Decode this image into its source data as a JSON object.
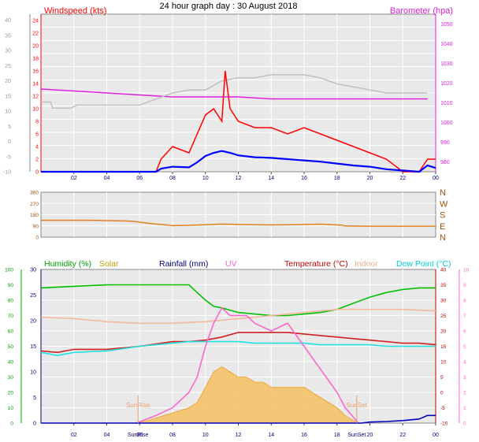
{
  "title": "24 hour graph day : 30 August 2018",
  "chart_data": [
    {
      "type": "line",
      "panel": "wind-barometer",
      "legend": {
        "left": "Windspeed (kts)",
        "right": "Barometer (hpa)"
      },
      "x_ticks": [
        "02",
        "04",
        "06",
        "08",
        "10",
        "12",
        "14",
        "16",
        "18",
        "20",
        "22",
        "00"
      ],
      "xlim": [
        0,
        24
      ],
      "left_axis": {
        "ticks": [
          0,
          2,
          4,
          6,
          8,
          10,
          12,
          14,
          16,
          18,
          20,
          22,
          24
        ],
        "ylim": [
          0,
          25
        ]
      },
      "outer_left_axis": {
        "ticks": [
          -10,
          -5,
          0,
          5,
          10,
          15,
          20,
          25,
          30,
          35,
          40
        ],
        "ylim": [
          -10,
          42
        ]
      },
      "right_axis": {
        "ticks": [
          980,
          990,
          1000,
          1010,
          1020,
          1030,
          1040,
          1050
        ],
        "ylim": [
          975,
          1055
        ]
      },
      "series": [
        {
          "name": "Barometer (hpa)",
          "axis": "right",
          "color": "#e020e0",
          "x": [
            0,
            2,
            4,
            6,
            8,
            10,
            12,
            14,
            16,
            18,
            20,
            22,
            23.5
          ],
          "y": [
            1017,
            1016,
            1015,
            1014,
            1013,
            1013,
            1013,
            1012,
            1012,
            1012,
            1012,
            1012,
            1012
          ]
        },
        {
          "color": "#c0c0c0",
          "axis": "outer_left",
          "x": [
            0,
            0.6,
            0.7,
            1.8,
            2.2,
            4,
            6,
            7,
            8,
            9,
            10,
            11,
            12,
            13,
            14,
            15,
            16,
            17,
            18,
            19,
            20,
            21,
            22,
            23.5
          ],
          "y": [
            13,
            13,
            11,
            11,
            12,
            12,
            12,
            14,
            16,
            17,
            17,
            20,
            21,
            21,
            22,
            22,
            22,
            21,
            19,
            18,
            17,
            16,
            16,
            16
          ]
        },
        {
          "name": "Windspeed (kts)",
          "axis": "left",
          "color": "#ff0000",
          "x": [
            0,
            7,
            7.3,
            8,
            9,
            9.5,
            10,
            10.5,
            11,
            11.2,
            11.5,
            12,
            13,
            14,
            15,
            16,
            17,
            18,
            19,
            20,
            21,
            22,
            23,
            23.5,
            24
          ],
          "y": [
            0,
            0,
            2,
            4,
            3,
            6,
            9,
            10,
            8,
            16,
            10,
            8,
            7,
            7,
            6,
            7,
            6,
            5,
            4,
            3,
            2,
            0,
            0,
            2,
            2
          ]
        },
        {
          "axis": "left",
          "color": "#0000ff",
          "x": [
            0,
            7,
            7.3,
            8,
            9,
            9.5,
            10,
            10.5,
            11,
            11.5,
            12,
            13,
            14,
            15,
            16,
            17,
            18,
            19,
            20,
            21,
            22,
            23,
            23.5,
            24
          ],
          "y": [
            0,
            0,
            0.5,
            0.8,
            0.7,
            1.5,
            2.5,
            3,
            3.3,
            3,
            2.6,
            2.3,
            2.2,
            2,
            1.8,
            1.6,
            1.3,
            1,
            0.8,
            0.4,
            0.2,
            0,
            1,
            0.6
          ]
        }
      ]
    },
    {
      "type": "line",
      "panel": "wind-direction",
      "left_axis": {
        "ticks": [
          0,
          90,
          180,
          270,
          360
        ],
        "ylim": [
          0,
          360
        ]
      },
      "right_labels": [
        "N",
        "W",
        "S",
        "E",
        "N"
      ],
      "xlim": [
        0,
        24
      ],
      "series": [
        {
          "color": "#e08020",
          "x": [
            0,
            3,
            5,
            5.5,
            6,
            6.5,
            7,
            7.5,
            8,
            9,
            10,
            11,
            12,
            13,
            14,
            15,
            16,
            17,
            18,
            18.3,
            18.5,
            20,
            22,
            24
          ],
          "y": [
            135,
            135,
            130,
            128,
            120,
            112,
            105,
            100,
            92,
            95,
            100,
            105,
            102,
            100,
            98,
            100,
            102,
            104,
            98,
            96,
            90,
            88,
            88,
            88
          ]
        }
      ]
    },
    {
      "type": "line",
      "panel": "temperature-humidity",
      "legend": [
        {
          "label": "Humidity (%)",
          "color": "#00a000"
        },
        {
          "label": "Solar",
          "color": "#c0a000"
        },
        {
          "label": "Rainfall (mm)",
          "color": "#000080"
        },
        {
          "label": "UV",
          "color": "#ff66cc"
        },
        {
          "label": "Temperature (°C)",
          "color": "#c00000"
        },
        {
          "label": "Indoor",
          "color": "#f0b090"
        },
        {
          "label": "Dew Point (°C)",
          "color": "#00d0d0"
        }
      ],
      "x_ticks": [
        "02",
        "04",
        "06",
        "08",
        "10",
        "12",
        "14",
        "16",
        "18",
        "20",
        "22",
        "00"
      ],
      "markers": [
        "SunRise",
        "SunSet"
      ],
      "xlim": [
        0,
        24
      ],
      "humidity_axis": {
        "ticks": [
          0,
          10,
          20,
          30,
          40,
          50,
          60,
          70,
          80,
          90,
          100
        ],
        "ylim": [
          0,
          100
        ]
      },
      "rain_axis": {
        "ticks": [
          0,
          5,
          10,
          15,
          20,
          25,
          30
        ],
        "ylim": [
          0,
          30
        ]
      },
      "temp_axis": {
        "ticks": [
          -10,
          -5,
          0,
          5,
          10,
          15,
          20,
          25,
          30,
          35,
          40
        ],
        "ylim": [
          -10,
          40
        ]
      },
      "uv_axis": {
        "ticks": [
          0,
          1,
          2,
          3,
          4,
          5,
          6,
          7,
          8,
          9,
          10
        ],
        "ylim": [
          0,
          10
        ]
      },
      "series": [
        {
          "name": "Humidity (%)",
          "axis": "humidity",
          "color": "#00c000",
          "x": [
            0,
            2,
            4,
            6,
            8,
            9,
            9.5,
            10,
            10.5,
            11,
            12,
            13,
            14,
            15,
            16,
            17,
            18,
            19,
            20,
            21,
            22,
            23,
            24
          ],
          "y": [
            88,
            89,
            90,
            90,
            90,
            90,
            85,
            80,
            76,
            75,
            72,
            71,
            70,
            70,
            71,
            72,
            74,
            78,
            82,
            85,
            87,
            88,
            88
          ]
        },
        {
          "name": "Indoor",
          "axis": "temp",
          "color": "#f4b8a0",
          "x": [
            0,
            2,
            4,
            6,
            8,
            10,
            12,
            14,
            16,
            18,
            20,
            22,
            24
          ],
          "y": [
            24.5,
            24,
            23,
            22.5,
            22.5,
            23,
            24,
            25,
            26,
            27,
            27,
            27,
            26.5
          ]
        },
        {
          "name": "Temperature (°C)",
          "axis": "temp",
          "color": "#d02020",
          "x": [
            0,
            1,
            2,
            4,
            6,
            8,
            9,
            10,
            11,
            12,
            13,
            14,
            15,
            16,
            17,
            18,
            19,
            20,
            21,
            22,
            23,
            24
          ],
          "y": [
            13.5,
            13,
            14,
            14,
            15,
            16.5,
            16.5,
            17,
            18,
            19.5,
            19.5,
            19.5,
            19.5,
            19,
            18.5,
            18,
            17.5,
            17,
            16.5,
            16,
            16,
            15.5
          ]
        },
        {
          "name": "Dew Point (°C)",
          "axis": "temp",
          "color": "#20e0e0",
          "x": [
            0,
            1,
            2,
            4,
            6,
            8,
            9,
            10,
            11,
            12,
            13,
            14,
            15,
            16,
            17,
            18,
            19,
            20,
            21,
            22,
            23,
            24
          ],
          "y": [
            13,
            12,
            13,
            13.5,
            15,
            16,
            16.5,
            16.5,
            16.5,
            16.5,
            16,
            16,
            16,
            16,
            15.5,
            15.5,
            15.5,
            15.5,
            15,
            15,
            15,
            15
          ]
        },
        {
          "name": "Solar",
          "axis": "rain",
          "fill": true,
          "color": "#f4c060",
          "x": [
            5.8,
            6.5,
            7,
            8,
            9,
            9.5,
            10,
            10.5,
            11,
            11.5,
            12,
            12.5,
            13,
            13.5,
            14,
            15,
            16,
            17,
            18,
            18.5,
            19,
            19.3
          ],
          "y": [
            0,
            0.5,
            1,
            2,
            3,
            4,
            7,
            10,
            11,
            10,
            9,
            9,
            8,
            8,
            7,
            7,
            7,
            5,
            3,
            1.5,
            0.5,
            0
          ]
        },
        {
          "name": "UV",
          "axis": "uv",
          "color": "#ff66cc",
          "x": [
            5.8,
            7,
            8,
            9,
            9.5,
            10,
            10.5,
            11,
            11.5,
            12,
            12.5,
            13,
            14,
            15,
            16,
            17,
            18,
            18.5,
            19.3
          ],
          "y": [
            0,
            0.5,
            1,
            2,
            3,
            5,
            6.5,
            7.5,
            7,
            7,
            7,
            6.5,
            6,
            6.5,
            5,
            3.5,
            2,
            1,
            0
          ]
        },
        {
          "name": "Rainfall (mm)",
          "axis": "rain",
          "color": "#0000c0",
          "x": [
            0,
            19.5,
            20,
            21,
            22,
            23,
            23.5,
            24
          ],
          "y": [
            0,
            0,
            0.2,
            0.3,
            0.5,
            0.8,
            1.5,
            1.5
          ]
        }
      ]
    }
  ]
}
